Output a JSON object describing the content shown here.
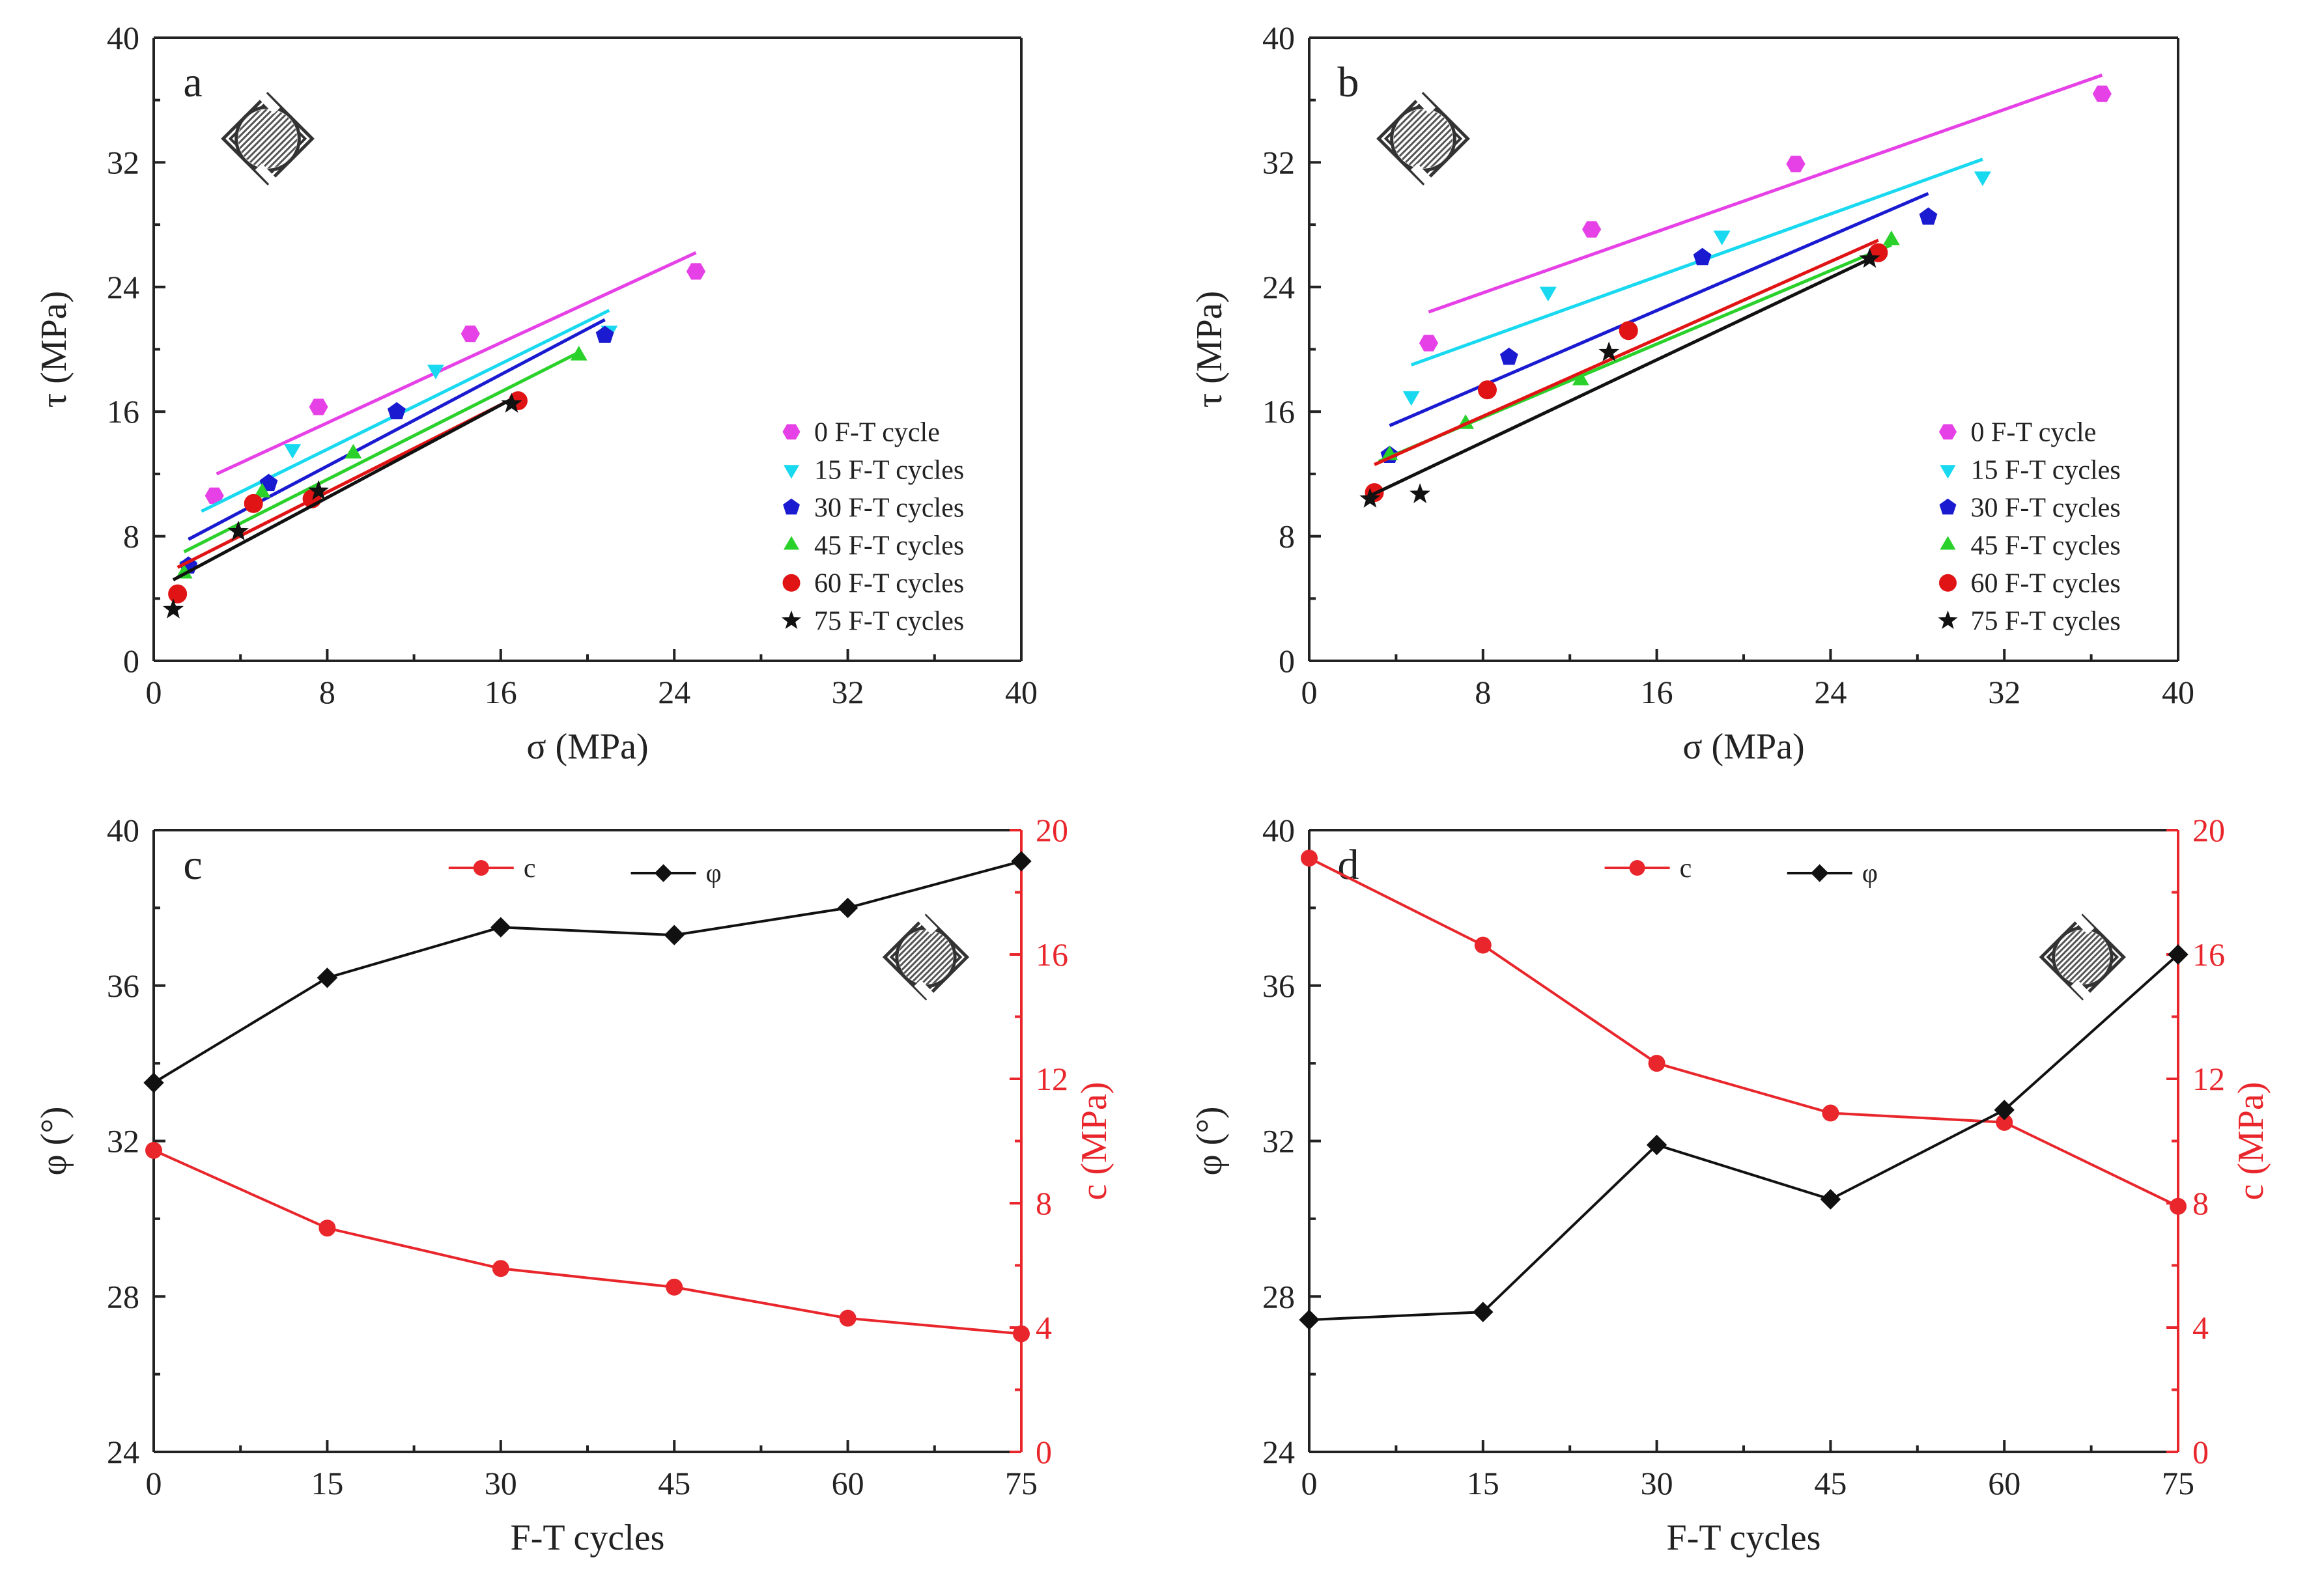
{
  "colors": {
    "c": "#e8262b",
    "phi": "#111111",
    "series": [
      "#e641e6",
      "#19d9f0",
      "#1a1ad0",
      "#2bd12b",
      "#e01414",
      "#111111"
    ]
  },
  "chart_data": [
    {
      "panel": "a",
      "type": "scatter",
      "xlabel": "σ  (MPa)",
      "ylabel": "τ (MPa)",
      "xlim": [
        0,
        40
      ],
      "ylim": [
        0,
        40
      ],
      "xticks": [
        0,
        8,
        16,
        24,
        32,
        40
      ],
      "yticks": [
        0,
        8,
        16,
        24,
        32,
        40
      ],
      "legend_position": "bottom-right",
      "series": [
        {
          "name": "0  F-T cycle",
          "marker": "hexagon",
          "fit": [
            [
              2.9,
              12.0
            ],
            [
              25.0,
              26.2
            ]
          ],
          "points": [
            [
              2.8,
              10.6
            ],
            [
              7.6,
              16.3
            ],
            [
              14.6,
              21.0
            ],
            [
              25.0,
              25.0
            ]
          ]
        },
        {
          "name": "15 F-T cycles",
          "marker": "triangle-down",
          "fit": [
            [
              2.2,
              9.6
            ],
            [
              21.0,
              22.5
            ]
          ],
          "points": [
            [
              1.6,
              6.1
            ],
            [
              6.4,
              13.6
            ],
            [
              13.0,
              18.7
            ],
            [
              21.0,
              21.2
            ]
          ]
        },
        {
          "name": "30 F-T cycles",
          "marker": "pentagon",
          "fit": [
            [
              1.6,
              7.8
            ],
            [
              20.8,
              21.9
            ]
          ],
          "points": [
            [
              1.6,
              6.1
            ],
            [
              5.3,
              11.4
            ],
            [
              11.2,
              16.0
            ],
            [
              20.8,
              20.9
            ]
          ]
        },
        {
          "name": "45 F-T cycles",
          "marker": "triangle-up",
          "fit": [
            [
              1.4,
              7.0
            ],
            [
              19.6,
              19.8
            ]
          ],
          "points": [
            [
              1.4,
              5.6
            ],
            [
              5.0,
              10.8
            ],
            [
              9.2,
              13.3
            ],
            [
              19.6,
              19.6
            ]
          ]
        },
        {
          "name": "60 F-T cycles",
          "marker": "circle",
          "fit": [
            [
              1.1,
              6.0
            ],
            [
              16.8,
              17.0
            ]
          ],
          "points": [
            [
              1.1,
              4.3
            ],
            [
              4.6,
              10.1
            ],
            [
              7.3,
              10.4
            ],
            [
              16.8,
              16.7
            ]
          ]
        },
        {
          "name": "75 F-T cycles",
          "marker": "star",
          "fit": [
            [
              0.9,
              5.2
            ],
            [
              16.5,
              16.8
            ]
          ],
          "points": [
            [
              0.9,
              3.3
            ],
            [
              3.9,
              8.3
            ],
            [
              7.6,
              10.9
            ],
            [
              16.5,
              16.5
            ]
          ]
        }
      ]
    },
    {
      "panel": "b",
      "type": "scatter",
      "xlabel": "σ  (MPa)",
      "ylabel": "τ (MPa)",
      "xlim": [
        0,
        40
      ],
      "ylim": [
        0,
        40
      ],
      "xticks": [
        0,
        8,
        16,
        24,
        32,
        40
      ],
      "yticks": [
        0,
        8,
        16,
        24,
        32,
        40
      ],
      "legend_position": "bottom-right",
      "series": [
        {
          "name": "0  F-T cycle",
          "marker": "hexagon",
          "fit": [
            [
              5.5,
              22.4
            ],
            [
              36.5,
              37.6
            ]
          ],
          "points": [
            [
              5.5,
              20.4
            ],
            [
              13.0,
              27.7
            ],
            [
              22.4,
              31.9
            ],
            [
              36.5,
              36.4
            ]
          ]
        },
        {
          "name": "15 F-T cycles",
          "marker": "triangle-down",
          "fit": [
            [
              4.7,
              19.0
            ],
            [
              31.0,
              32.2
            ]
          ],
          "points": [
            [
              4.7,
              17.0
            ],
            [
              11.0,
              23.7
            ],
            [
              19.0,
              27.3
            ],
            [
              31.0,
              31.1
            ]
          ]
        },
        {
          "name": "30 F-T cycles",
          "marker": "pentagon",
          "fit": [
            [
              3.7,
              15.1
            ],
            [
              28.5,
              30.0
            ]
          ],
          "points": [
            [
              3.7,
              13.2
            ],
            [
              9.2,
              19.5
            ],
            [
              18.1,
              25.9
            ],
            [
              28.5,
              28.5
            ]
          ]
        },
        {
          "name": "45 F-T cycles",
          "marker": "triangle-up",
          "fit": [
            [
              3.2,
              12.8
            ],
            [
              26.8,
              26.7
            ]
          ],
          "points": [
            [
              3.7,
              13.2
            ],
            [
              7.2,
              15.2
            ],
            [
              12.5,
              18.0
            ],
            [
              26.8,
              27.0
            ]
          ]
        },
        {
          "name": "60 F-T cycles",
          "marker": "circle",
          "fit": [
            [
              3.0,
              12.6
            ],
            [
              26.2,
              27.0
            ]
          ],
          "points": [
            [
              3.0,
              10.8
            ],
            [
              8.2,
              17.4
            ],
            [
              14.7,
              21.2
            ],
            [
              26.2,
              26.2
            ]
          ]
        },
        {
          "name": "75 F-T cycles",
          "marker": "star",
          "fit": [
            [
              2.8,
              10.6
            ],
            [
              25.8,
              25.8
            ]
          ],
          "points": [
            [
              2.8,
              10.4
            ],
            [
              5.1,
              10.7
            ],
            [
              13.8,
              19.8
            ],
            [
              25.8,
              25.8
            ]
          ]
        }
      ]
    },
    {
      "panel": "c",
      "type": "line",
      "xlabel": "F-T cycles",
      "ylabel": "φ (°)",
      "y2label": "c (MPa)",
      "x": [
        0,
        15,
        30,
        45,
        60,
        75
      ],
      "xlim": [
        0,
        75
      ],
      "ylim": [
        24,
        40
      ],
      "y2lim": [
        0,
        20
      ],
      "xticks": [
        0,
        15,
        30,
        45,
        60,
        75
      ],
      "yticks": [
        24,
        28,
        32,
        36,
        40
      ],
      "y2ticks": [
        0,
        4,
        8,
        12,
        16,
        20
      ],
      "legend_position": "top-center",
      "series": [
        {
          "name": "c",
          "axis": "right",
          "values": [
            9.7,
            7.2,
            5.9,
            5.3,
            4.3,
            3.8
          ]
        },
        {
          "name": "φ",
          "axis": "left",
          "values": [
            33.5,
            36.2,
            37.5,
            37.3,
            38.0,
            39.2
          ]
        }
      ]
    },
    {
      "panel": "d",
      "type": "line",
      "xlabel": "F-T cycles",
      "ylabel": "φ (°)",
      "y2label": "c (MPa)",
      "x": [
        0,
        15,
        30,
        45,
        60,
        75
      ],
      "xlim": [
        0,
        75
      ],
      "ylim": [
        24,
        40
      ],
      "y2lim": [
        0,
        20
      ],
      "xticks": [
        0,
        15,
        30,
        45,
        60,
        75
      ],
      "yticks": [
        24,
        28,
        32,
        36,
        40
      ],
      "y2ticks": [
        0,
        4,
        8,
        12,
        16,
        20
      ],
      "legend_position": "top-center",
      "series": [
        {
          "name": "c",
          "axis": "right",
          "values": [
            19.1,
            16.3,
            12.5,
            10.9,
            10.6,
            7.9
          ]
        },
        {
          "name": "φ",
          "axis": "left",
          "values": [
            27.4,
            27.6,
            31.9,
            30.5,
            32.8,
            36.8
          ]
        }
      ]
    }
  ]
}
